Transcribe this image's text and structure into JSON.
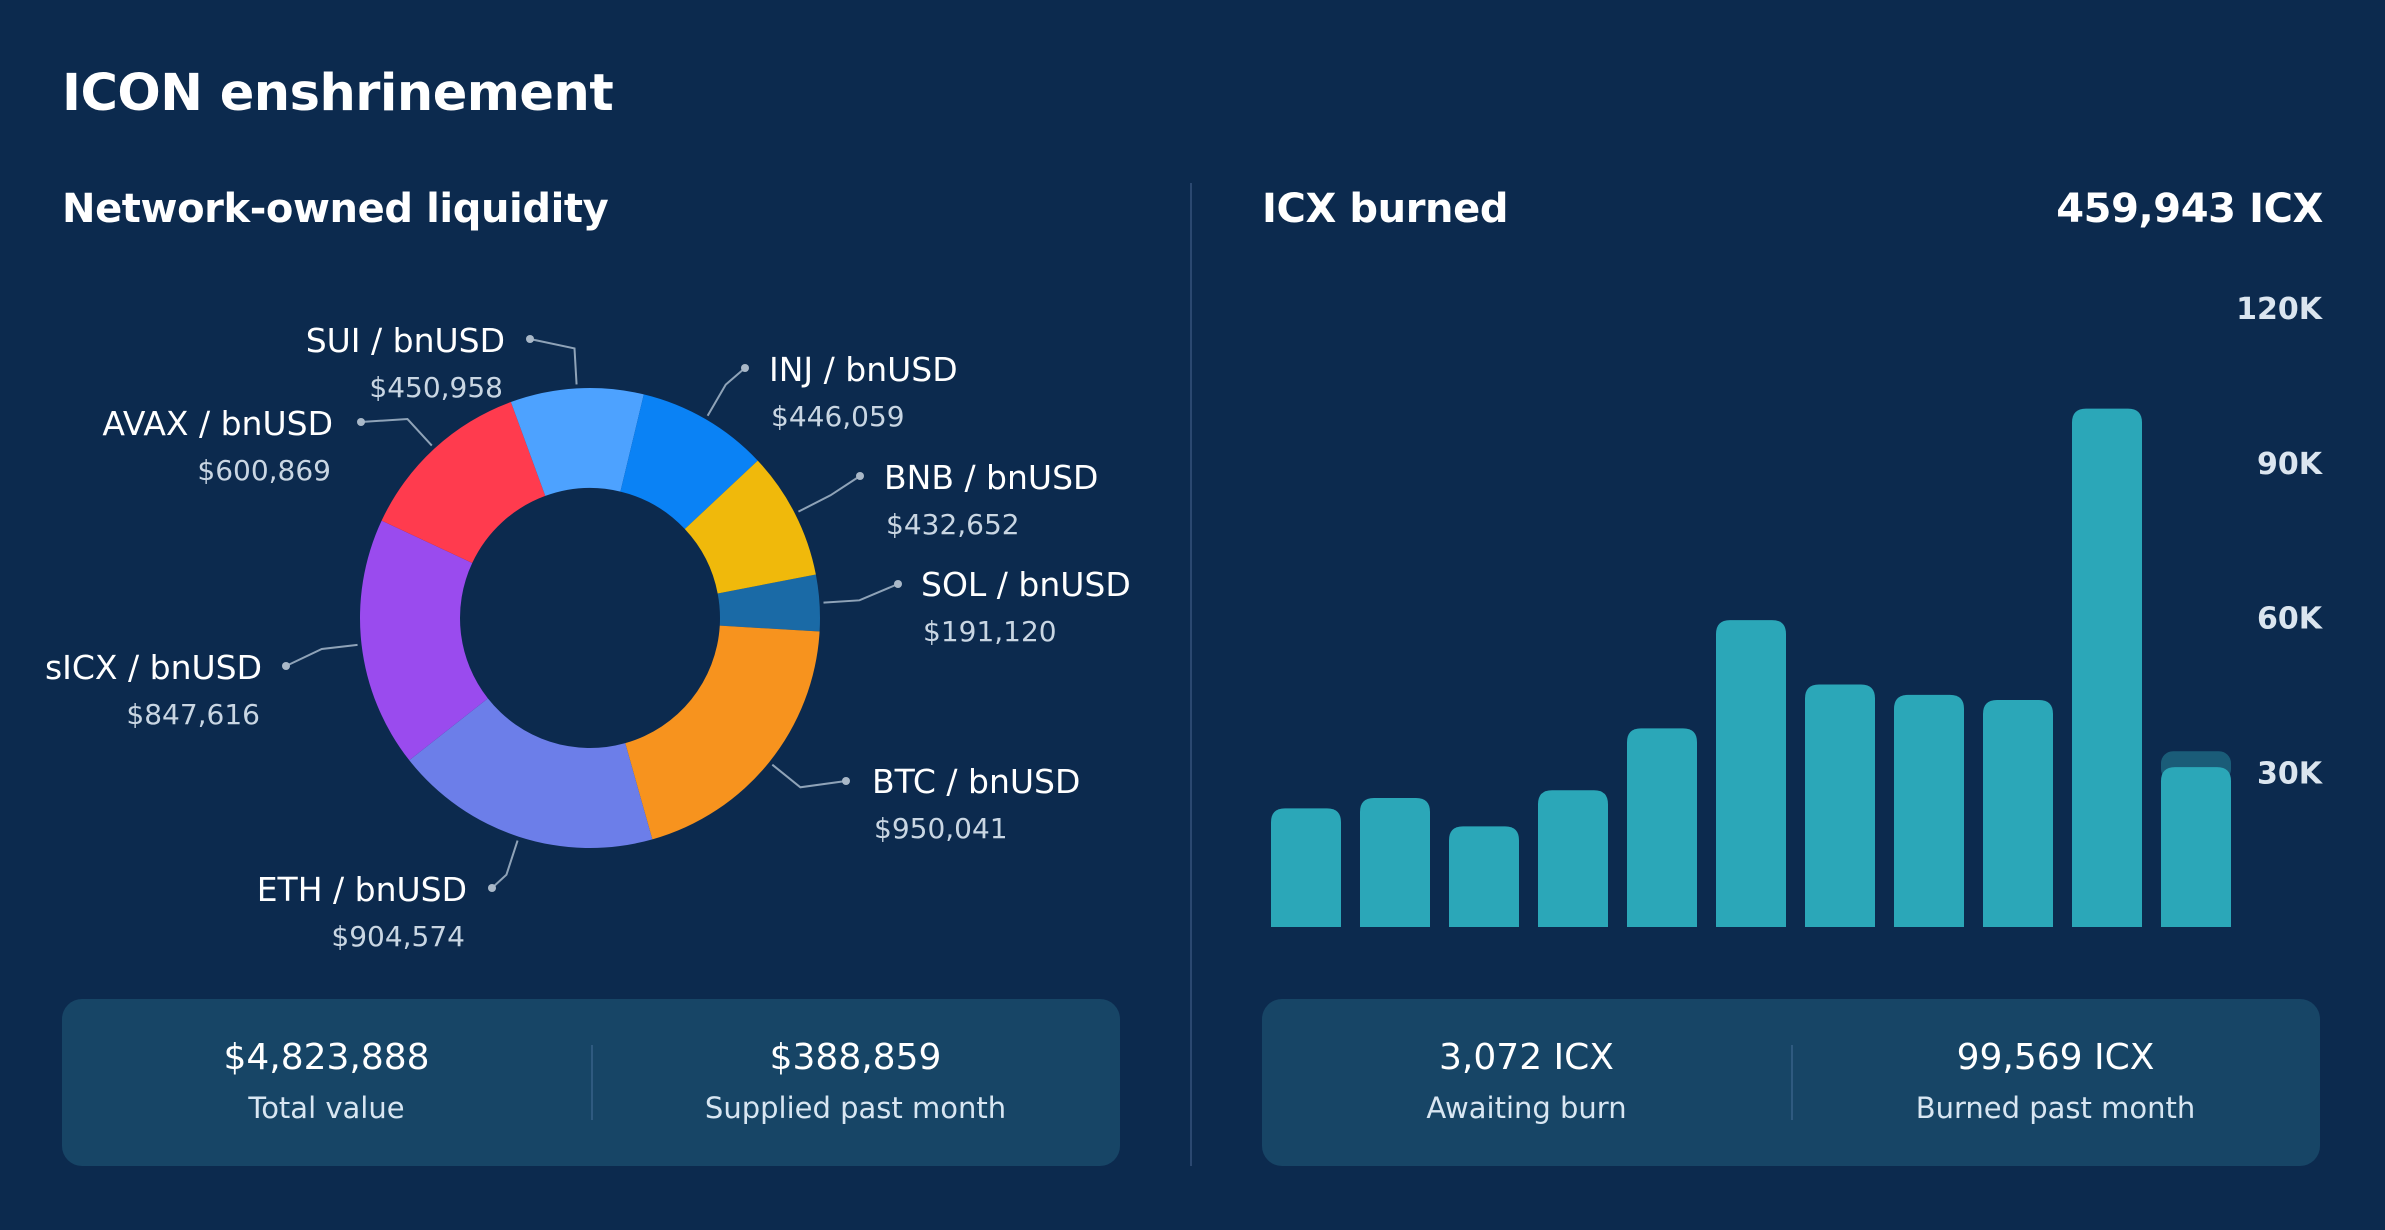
{
  "page": {
    "title": "ICON enshrinement",
    "background": "#0c2a4e",
    "panel_color": "#174566",
    "bar_color": "#2ba7b8",
    "pending_bar_color": "#1a5c78"
  },
  "liquidity": {
    "title": "Network-owned liquidity",
    "stats": [
      {
        "value": "$4,823,888",
        "label": "Total value"
      },
      {
        "value": "$388,859",
        "label": "Supplied past month"
      }
    ]
  },
  "burn": {
    "title": "ICX burned",
    "total": "459,943 ICX",
    "stats": [
      {
        "value": "3,072 ICX",
        "label": "Awaiting burn"
      },
      {
        "value": "99,569 ICX",
        "label": "Burned past month"
      }
    ]
  },
  "chart_data": [
    {
      "type": "pie",
      "title": "Network-owned liquidity",
      "donut": true,
      "slices": [
        {
          "name": "SOL / bnUSD",
          "label": "$191,120",
          "value": 191120,
          "color": "#1a6aa6"
        },
        {
          "name": "BTC / bnUSD",
          "label": "$950,041",
          "value": 950041,
          "color": "#f7931e"
        },
        {
          "name": "ETH / bnUSD",
          "label": "$904,574",
          "value": 904574,
          "color": "#6c7ee9"
        },
        {
          "name": "sICX / bnUSD",
          "label": "$847,616",
          "value": 847616,
          "color": "#9a4bee"
        },
        {
          "name": "AVAX / bnUSD",
          "label": "$600,869",
          "value": 600869,
          "color": "#ff3b4e"
        },
        {
          "name": "SUI / bnUSD",
          "label": "$450,958",
          "value": 450958,
          "color": "#4da2ff"
        },
        {
          "name": "INJ / bnUSD",
          "label": "$446,059",
          "value": 446059,
          "color": "#0a82f5"
        },
        {
          "name": "BNB / bnUSD",
          "label": "$432,652",
          "value": 432652,
          "color": "#f0b90b"
        }
      ]
    },
    {
      "type": "bar",
      "title": "ICX burned",
      "yticks": [
        "30K",
        "60K",
        "90K",
        "120K"
      ],
      "ylim": [
        0,
        120000
      ],
      "grid": false,
      "values": [
        23000,
        25000,
        19500,
        26500,
        38500,
        59500,
        47000,
        45000,
        44000,
        100500,
        31000
      ],
      "pending": [
        0,
        0,
        0,
        0,
        0,
        0,
        0,
        0,
        0,
        0,
        3072
      ]
    }
  ]
}
